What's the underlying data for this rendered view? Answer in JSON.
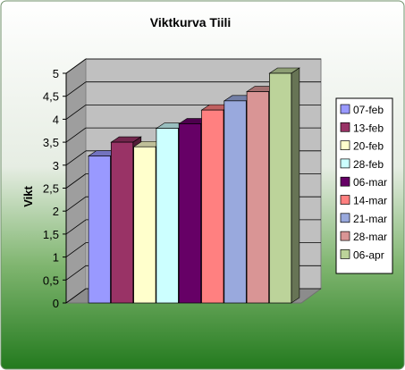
{
  "chart_data": {
    "type": "bar",
    "title": "Viktkurva Tiili",
    "ylabel": "Vikt",
    "xlabel": "",
    "ylim": [
      0,
      5
    ],
    "y_ticks": [
      "0",
      "0,5",
      "1",
      "1,5",
      "2",
      "2,5",
      "3",
      "3,5",
      "4",
      "4,5",
      "5"
    ],
    "grid": true,
    "legend_position": "right",
    "three_d": true,
    "categories": [
      "07-feb",
      "13-feb",
      "20-feb",
      "28-feb",
      "06-mar",
      "14-mar",
      "21-mar",
      "28-mar",
      "06-apr"
    ],
    "values": [
      3.2,
      3.5,
      3.4,
      3.8,
      3.9,
      4.2,
      4.4,
      4.6,
      5.0
    ],
    "colors": [
      "#9999ff",
      "#993366",
      "#ffffcc",
      "#ccffff",
      "#660066",
      "#ff8080",
      "#99a9dd",
      "#d99595",
      "#bcd39a"
    ]
  }
}
